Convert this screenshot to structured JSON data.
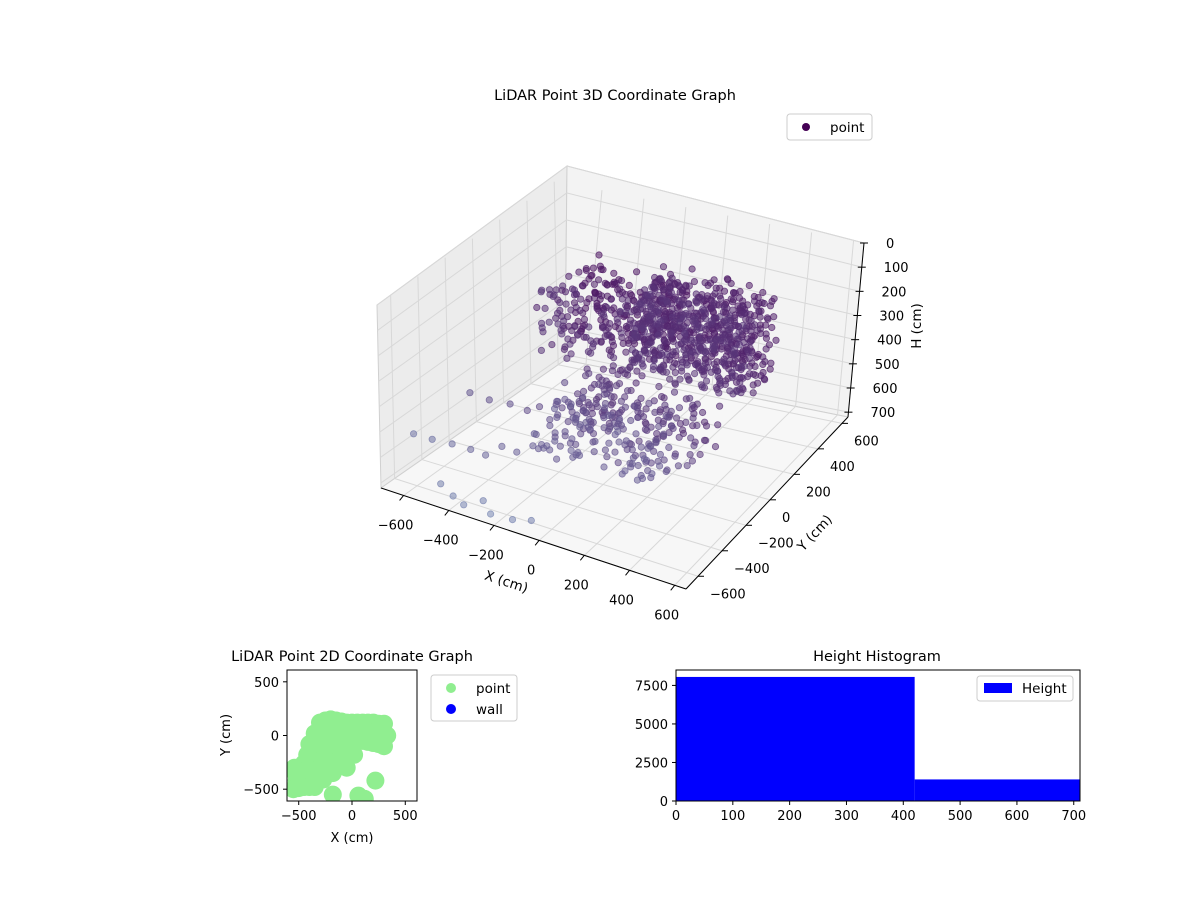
{
  "chart_data": [
    {
      "type": "scatter",
      "projection": "3d",
      "title": "LiDAR Point 3D Coordinate Graph",
      "xlabel": "X (cm)",
      "ylabel": "Y (cm)",
      "zlabel": "H (cm)",
      "xlim": [
        -700,
        650
      ],
      "ylim": [
        -700,
        650
      ],
      "zlim": [
        0,
        720
      ],
      "zaxis_inverted": true,
      "xticks": [
        -600,
        -400,
        -200,
        0,
        200,
        400,
        600
      ],
      "yticks": [
        -600,
        -400,
        -200,
        0,
        200,
        400,
        600
      ],
      "zticks": [
        0,
        100,
        200,
        300,
        400,
        500,
        600,
        700
      ],
      "xtick_labels": [
        "−600",
        "−400",
        "−200",
        "0",
        "200",
        "400",
        "600"
      ],
      "ytick_labels": [
        "−600",
        "−400",
        "−200",
        "0",
        "200",
        "400",
        "600"
      ],
      "ztick_labels": [
        "0",
        "100",
        "200",
        "300",
        "400",
        "500",
        "600",
        "700"
      ],
      "grid": true,
      "legend": {
        "placement": "top-right",
        "entries": [
          {
            "label": "point",
            "color": "#440154"
          }
        ]
      },
      "series": [
        {
          "name": "point",
          "color_far": "#440154",
          "color_near": "#7f98be",
          "clusters": [
            {
              "x": [
                -150,
                350
              ],
              "y": [
                100,
                400
              ],
              "z": [
                30,
                380
              ],
              "count": 700
            },
            {
              "x": [
                -550,
                -100
              ],
              "y": [
                100,
                500
              ],
              "z": [
                150,
                450
              ],
              "count": 260
            },
            {
              "x": [
                -300,
                250
              ],
              "y": [
                -300,
                200
              ],
              "z": [
                380,
                600
              ],
              "count": 260
            }
          ],
          "x": [
            -680,
            -620,
            -560,
            -500,
            -450,
            -400,
            -350,
            -280,
            -220,
            -160,
            -100,
            -60,
            -20,
            40,
            100,
            -630,
            -560,
            -480,
            -420,
            -380,
            -320,
            -260,
            -200,
            -140,
            -80,
            -20,
            -500,
            -420,
            -360,
            -300,
            -230,
            -150,
            -80,
            -650,
            -590,
            -540,
            -470,
            -400,
            -330
          ],
          "y": [
            -520,
            -480,
            -430,
            -390,
            -360,
            -330,
            -300,
            -260,
            -220,
            -180,
            -150,
            -120,
            -100,
            -80,
            -60,
            -200,
            -170,
            -150,
            -120,
            -100,
            -80,
            -60,
            -40,
            -20,
            0,
            20,
            -600,
            -640,
            -660,
            -620,
            -680,
            -650,
            -630,
            300,
            350,
            400,
            420,
            380,
            450
          ],
          "z": [
            560,
            580,
            600,
            620,
            640,
            600,
            620,
            600,
            640,
            620,
            600,
            620,
            640,
            600,
            620,
            500,
            520,
            520,
            540,
            520,
            500,
            520,
            480,
            500,
            480,
            500,
            680,
            690,
            700,
            680,
            690,
            700,
            690,
            350,
            320,
            300,
            280,
            300,
            260
          ]
        }
      ]
    },
    {
      "type": "scatter",
      "title": "LiDAR Point 2D Coordinate Graph",
      "xlabel": "X (cm)",
      "ylabel": "Y (cm)",
      "xlim": [
        -610,
        610
      ],
      "ylim": [
        -610,
        610
      ],
      "xticks": [
        -500,
        0,
        500
      ],
      "yticks": [
        -500,
        0,
        500
      ],
      "xtick_labels": [
        "−500",
        "0",
        "500"
      ],
      "ytick_labels": [
        "−500",
        "0",
        "500"
      ],
      "legend": {
        "placement": "outside-right",
        "entries": [
          {
            "label": "point",
            "color": "#90ee90"
          },
          {
            "label": "wall",
            "color": "#0000ff"
          }
        ]
      },
      "series": [
        {
          "name": "point",
          "color": "#90ee90",
          "x": [
            -300,
            -250,
            -200,
            -150,
            -100,
            -50,
            0,
            50,
            100,
            150,
            200,
            250,
            300,
            -350,
            -300,
            -250,
            -200,
            -150,
            -100,
            -50,
            0,
            50,
            100,
            150,
            200,
            250,
            300,
            330,
            -400,
            -350,
            -300,
            -250,
            -200,
            -150,
            -100,
            -50,
            0,
            50,
            100,
            150,
            200,
            250,
            300,
            -420,
            -380,
            -330,
            -280,
            -230,
            -180,
            -130,
            -80,
            -30,
            20,
            -450,
            -400,
            -350,
            -300,
            -250,
            -200,
            -150,
            -100,
            -50,
            -480,
            -430,
            -380,
            -330,
            -280,
            -230,
            -180,
            -520,
            -470,
            -420,
            -370,
            -320,
            -270,
            -550,
            -500,
            -450,
            -400,
            -350,
            -540,
            -530,
            60,
            120,
            -180,
            220
          ],
          "y": [
            120,
            140,
            150,
            140,
            130,
            120,
            120,
            120,
            120,
            120,
            120,
            110,
            110,
            20,
            40,
            50,
            60,
            60,
            60,
            60,
            60,
            60,
            50,
            40,
            30,
            20,
            10,
            0,
            -80,
            -60,
            -40,
            -40,
            -40,
            -40,
            -40,
            -40,
            -40,
            -40,
            -50,
            -60,
            -70,
            -80,
            -100,
            -180,
            -160,
            -150,
            -150,
            -150,
            -150,
            -150,
            -150,
            -160,
            -180,
            -260,
            -250,
            -240,
            -240,
            -240,
            -250,
            -260,
            -280,
            -300,
            -340,
            -330,
            -320,
            -320,
            -320,
            -330,
            -350,
            -420,
            -410,
            -400,
            -400,
            -400,
            -410,
            -500,
            -490,
            -480,
            -480,
            -480,
            -300,
            -350,
            -560,
            -590,
            -550,
            -420
          ]
        },
        {
          "name": "wall",
          "color": "#0000ff",
          "x": [],
          "y": []
        }
      ]
    },
    {
      "type": "bar",
      "subtype": "histogram",
      "title": "Height Histogram",
      "xlim": [
        0,
        711
      ],
      "ylim": [
        0,
        8500
      ],
      "xticks": [
        0,
        100,
        200,
        300,
        400,
        500,
        600,
        700
      ],
      "yticks": [
        0,
        2500,
        5000,
        7500
      ],
      "legend": {
        "placement": "top-right",
        "entries": [
          {
            "label": "Height",
            "color": "#0000ff"
          }
        ]
      },
      "series": [
        {
          "name": "Height",
          "color": "#0000ff",
          "bins": [
            {
              "start": 0,
              "end": 420,
              "count": 8050
            },
            {
              "start": 420,
              "end": 711,
              "count": 1400
            }
          ]
        }
      ]
    }
  ]
}
